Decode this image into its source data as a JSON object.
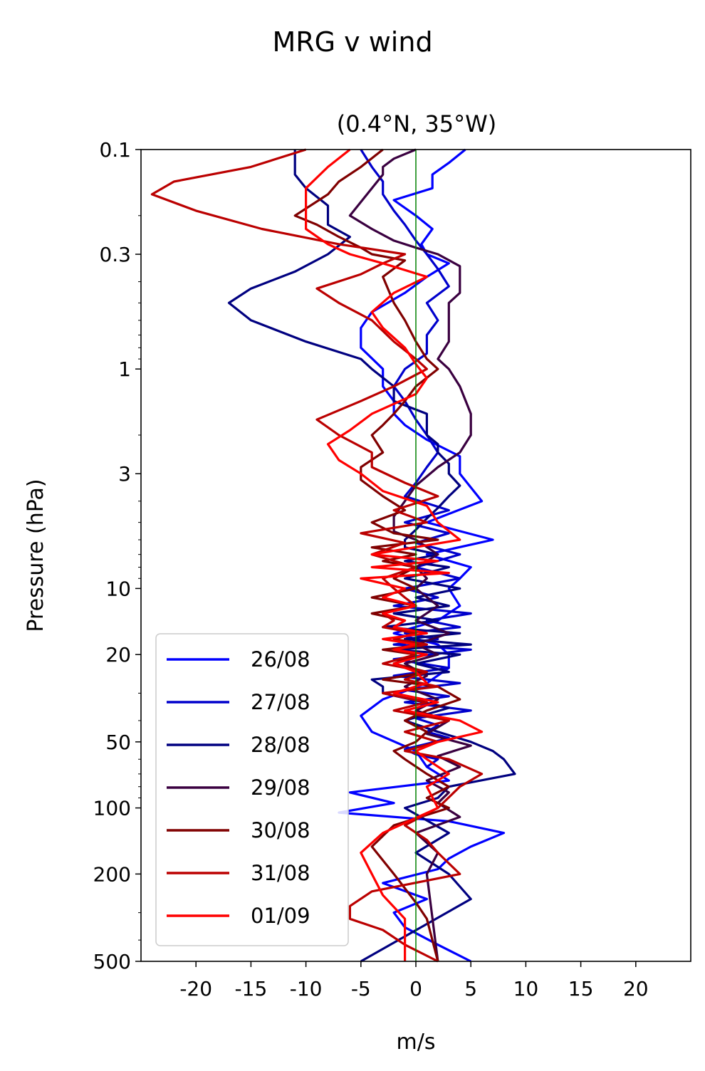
{
  "suptitle": "MRG v wind",
  "chart_data": {
    "type": "line",
    "title": "(0.4°N, 35°W)",
    "xlabel": "m/s",
    "ylabel": "Pressure (hPa)",
    "xlim": [
      -25,
      25
    ],
    "ylim": [
      500,
      0.1
    ],
    "yscale": "log",
    "y_inverted": true,
    "grid": false,
    "legend_position": "lower-left",
    "xticks": [
      -20,
      -15,
      -10,
      -5,
      0,
      5,
      10,
      15,
      20
    ],
    "xtick_labels": [
      "-20",
      "-15",
      "-10",
      "-5",
      "0",
      "5",
      "10",
      "15",
      "20"
    ],
    "yticks": [
      0.1,
      0.3,
      1,
      3,
      10,
      20,
      50,
      100,
      200,
      500
    ],
    "ytick_labels": [
      "0.1",
      "0.3",
      "1",
      "3",
      "10",
      "20",
      "50",
      "100",
      "200",
      "500"
    ],
    "reference_line": {
      "x": 0,
      "color": "#008000"
    },
    "series": [
      {
        "name": "26/08",
        "color": "#0000ff",
        "x": [
          4.5,
          3,
          1.5,
          1.5,
          -2,
          0,
          1.5,
          0.5,
          1,
          3,
          1,
          -1,
          -4,
          -5,
          -5,
          -3,
          -3,
          -2,
          -2,
          -1,
          1,
          4,
          4,
          6,
          1,
          7,
          1,
          5,
          4,
          3,
          4,
          2,
          -2,
          2,
          3,
          3,
          1,
          -3,
          -5,
          -4,
          0,
          1,
          3,
          -6,
          -2,
          -7,
          3,
          8,
          5,
          3,
          2,
          -3,
          1,
          -2,
          -1,
          2,
          5
        ],
        "y": [
          0.1,
          0.115,
          0.13,
          0.15,
          0.17,
          0.2,
          0.23,
          0.27,
          0.3,
          0.33,
          0.38,
          0.45,
          0.55,
          0.65,
          0.8,
          1,
          1.2,
          1.4,
          1.6,
          1.8,
          2.1,
          2.5,
          3,
          4,
          5,
          6,
          7,
          8,
          9,
          10,
          12,
          14,
          16,
          18,
          20,
          23,
          27,
          32,
          38,
          45,
          55,
          65,
          75,
          85,
          95,
          105,
          115,
          130,
          150,
          170,
          190,
          220,
          260,
          300,
          350,
          420,
          500
        ]
      },
      {
        "name": "27/08",
        "color": "#0000cc",
        "x": [
          -5,
          -4,
          -3,
          -3,
          -2,
          -1,
          0,
          1,
          2,
          3,
          1,
          2,
          1,
          1,
          -1,
          -2,
          -1,
          0,
          1,
          2,
          1,
          0,
          -1,
          3,
          -1,
          3,
          0,
          4,
          0,
          4,
          -1,
          2,
          -2,
          5,
          1,
          4,
          -1,
          2,
          -2,
          5,
          -2,
          3,
          -2,
          4,
          -1,
          3,
          -1,
          5,
          0,
          2,
          1,
          3,
          1,
          -1,
          0,
          2,
          1
        ],
        "y": [
          0.1,
          0.12,
          0.14,
          0.16,
          0.19,
          0.22,
          0.26,
          0.3,
          0.35,
          0.42,
          0.5,
          0.6,
          0.7,
          0.85,
          1,
          1.2,
          1.4,
          1.7,
          2,
          2.4,
          2.8,
          3.3,
          3.8,
          4.4,
          5,
          5.6,
          6.2,
          7,
          8,
          9,
          10,
          11,
          12,
          13,
          14,
          15,
          16,
          17,
          18,
          19,
          21,
          23,
          25,
          27,
          29,
          31,
          33,
          36,
          39,
          42,
          45,
          48,
          51,
          54,
          57,
          60,
          65
        ]
      },
      {
        "name": "28/08",
        "color": "#000080",
        "x": [
          -11,
          -11,
          -11,
          -10,
          -8,
          -8,
          -6,
          -8,
          -11,
          -15,
          -17,
          -15,
          -10,
          -5,
          -4,
          -2,
          -2,
          1,
          1,
          1,
          2,
          2,
          3,
          3,
          4,
          3,
          2,
          1,
          0,
          -1,
          -1,
          2,
          -1,
          3,
          -1,
          4,
          0,
          3,
          -2,
          2,
          -3,
          4,
          -1,
          5,
          -2,
          4,
          0,
          3,
          -4,
          -3,
          -3,
          3,
          -1,
          2,
          5,
          7,
          8,
          9,
          3,
          2,
          -1,
          3,
          0,
          3,
          5,
          -5
        ],
        "y": [
          0.1,
          0.115,
          0.13,
          0.15,
          0.18,
          0.22,
          0.25,
          0.3,
          0.36,
          0.43,
          0.5,
          0.6,
          0.75,
          0.9,
          1,
          1.2,
          1.4,
          1.6,
          1.8,
          2,
          2.2,
          2.4,
          2.7,
          3,
          3.4,
          3.8,
          4.3,
          4.8,
          5.4,
          6,
          6.5,
          7,
          7.5,
          8,
          9,
          10,
          11,
          12,
          13,
          14,
          15,
          16,
          17,
          18,
          19,
          20,
          22,
          24,
          26,
          28,
          30,
          35,
          40,
          45,
          50,
          55,
          60,
          70,
          80,
          90,
          100,
          130,
          160,
          200,
          260,
          500
        ]
      },
      {
        "name": "29/08",
        "color": "#3a0040",
        "x": [
          0,
          -2,
          -3,
          -3,
          -6,
          -4,
          -2,
          0,
          2,
          4,
          4,
          3,
          3,
          3,
          2,
          3,
          4,
          5,
          5,
          4,
          2,
          0,
          -1,
          -2,
          -2,
          0,
          2,
          0,
          1,
          0,
          2,
          0,
          3,
          0,
          2,
          -1,
          1,
          -1,
          2,
          0,
          3,
          1,
          5,
          2,
          4,
          1,
          3,
          2,
          4,
          0,
          2,
          1,
          2
        ],
        "y": [
          0.1,
          0.11,
          0.12,
          0.13,
          0.2,
          0.23,
          0.26,
          0.28,
          0.3,
          0.34,
          0.45,
          0.5,
          0.6,
          0.75,
          0.9,
          1,
          1.2,
          1.6,
          2,
          2.4,
          2.8,
          3.4,
          4,
          4.7,
          5.5,
          6,
          7,
          8,
          9,
          10,
          12,
          14,
          16,
          18,
          20,
          22,
          25,
          28,
          32,
          36,
          40,
          46,
          52,
          58,
          65,
          75,
          85,
          95,
          110,
          130,
          160,
          200,
          500
        ]
      },
      {
        "name": "30/08",
        "color": "#800000",
        "x": [
          -3,
          -5,
          -7,
          -8,
          -11,
          -9,
          -7,
          -5,
          -4,
          -1,
          -3,
          -2,
          -1,
          0,
          1,
          2,
          0,
          -1,
          -2,
          -3,
          -4,
          -3,
          -5,
          -5,
          -3,
          -1,
          -4,
          -2,
          2,
          -4,
          0,
          -3,
          0,
          -2,
          0,
          -4,
          0,
          -4,
          -1,
          -2,
          0,
          -2,
          1,
          -3,
          0,
          -2,
          1,
          -3,
          2,
          4,
          1,
          -1,
          1,
          0,
          -2,
          -1,
          1,
          3,
          1,
          3,
          -2,
          -4,
          -2,
          0,
          1,
          2
        ],
        "y": [
          0.1,
          0.12,
          0.14,
          0.16,
          0.2,
          0.22,
          0.25,
          0.28,
          0.3,
          0.32,
          0.38,
          0.5,
          0.6,
          0.75,
          0.9,
          1,
          1.2,
          1.4,
          1.6,
          1.8,
          2,
          2.4,
          2.8,
          3.2,
          3.8,
          4.4,
          5,
          5.6,
          6,
          6.5,
          7,
          7.5,
          8,
          9,
          10,
          11,
          12,
          13,
          14,
          15,
          16,
          17,
          18,
          19,
          20,
          22,
          24,
          26,
          28,
          32,
          36,
          40,
          45,
          50,
          55,
          60,
          70,
          80,
          90,
          100,
          120,
          150,
          200,
          270,
          320,
          500
        ]
      },
      {
        "name": "31/08",
        "color": "#bb0000",
        "x": [
          -10,
          -15,
          -22,
          -24,
          -20,
          -14,
          -7,
          -1,
          -3,
          -5,
          -9,
          -7,
          -4,
          -2,
          0,
          1,
          -2,
          -5,
          -9,
          -7,
          -4,
          -4,
          -1,
          2,
          -2,
          1,
          -5,
          -1,
          -4,
          0,
          -3,
          -2,
          -1,
          0,
          -3,
          -2,
          -3,
          0,
          -2,
          1,
          -2,
          0,
          -3,
          1,
          -1,
          2,
          -3,
          1,
          -2,
          3,
          -1,
          2,
          -1,
          3,
          6,
          4,
          2,
          -1,
          1,
          2,
          4,
          -4,
          -6,
          -6,
          -3,
          -1,
          2
        ],
        "y": [
          0.1,
          0.12,
          0.14,
          0.16,
          0.19,
          0.23,
          0.27,
          0.3,
          0.33,
          0.37,
          0.43,
          0.5,
          0.6,
          0.75,
          0.9,
          1,
          1.2,
          1.4,
          1.7,
          2,
          2.4,
          2.8,
          3.3,
          3.8,
          4.4,
          5,
          5.6,
          6.2,
          7,
          8,
          9,
          10,
          11,
          12,
          13,
          14,
          15,
          16,
          17,
          18,
          19,
          20,
          22,
          24,
          26,
          28,
          30,
          33,
          36,
          40,
          45,
          50,
          55,
          60,
          70,
          80,
          100,
          120,
          140,
          160,
          200,
          240,
          280,
          320,
          360,
          420,
          500
        ]
      },
      {
        "name": "01/09",
        "color": "#ff0000",
        "x": [
          -6,
          -8,
          -10,
          -10,
          -10,
          -8,
          -6,
          -3,
          1,
          -2,
          -4,
          -3,
          -1,
          0,
          1,
          0,
          -4,
          -6,
          -8,
          -7,
          -5,
          -3,
          1,
          2,
          4,
          -4,
          2,
          -4,
          3,
          -5,
          -1,
          -3,
          0,
          -3,
          -1,
          -2,
          1,
          -3,
          0,
          -2,
          1,
          -2,
          0,
          1,
          -2,
          2,
          -1,
          4,
          6,
          2,
          0,
          1,
          3,
          1,
          2,
          -3,
          -5,
          -4,
          -3,
          -1,
          -1
        ],
        "y": [
          0.1,
          0.12,
          0.15,
          0.19,
          0.23,
          0.27,
          0.3,
          0.33,
          0.38,
          0.45,
          0.55,
          0.65,
          0.8,
          0.95,
          1.1,
          1.3,
          1.6,
          1.9,
          2.2,
          2.6,
          3,
          3.6,
          4.2,
          5,
          6,
          7,
          7.5,
          8,
          8.5,
          9,
          10,
          11,
          12,
          13,
          14,
          15,
          16,
          17,
          18,
          19,
          20,
          22,
          24,
          27,
          30,
          33,
          36,
          40,
          45,
          50,
          55,
          60,
          70,
          80,
          100,
          130,
          160,
          200,
          250,
          320,
          500
        ]
      }
    ]
  }
}
